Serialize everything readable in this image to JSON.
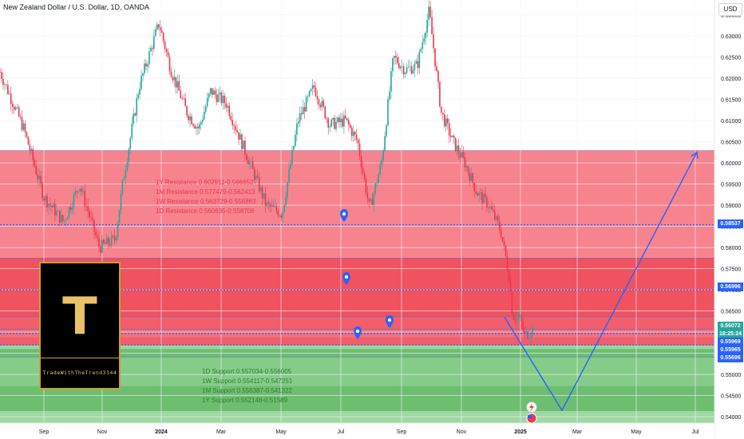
{
  "header": {
    "title": "New Zealand Dollar / U.S. Dollar, 1D, OANDA",
    "currency": "USD"
  },
  "logo": {
    "letter": "T",
    "text": "TradeWithTheTrend3344"
  },
  "resistance_labels": [
    "1Y Resistance 0.602911-0.566652",
    "1M Resistance 0.577479-0.562413",
    "1W Resistance 0.563729-0.556863",
    "1D Resistance 0.560635-0.558706"
  ],
  "support_labels": [
    "1D Support 0.557034-0.556005",
    "1W Support 0.554117-0.547251",
    "1M Support 0.556387-0.541322",
    "1Y Support 0.552148-0.51589"
  ],
  "price_tags": [
    {
      "price": "0.58537",
      "color": "#2962ff"
    },
    {
      "price": "0.56996",
      "color": "#2962ff"
    },
    {
      "price": "0.56072",
      "color": "#26a69a"
    },
    {
      "price": "18:25:24",
      "color": "#26a69a"
    },
    {
      "price": "0.55969",
      "color": "#2962ff"
    },
    {
      "price": "0.55965",
      "color": "#2962ff"
    },
    {
      "price": "0.55696",
      "color": "#2962ff"
    }
  ],
  "colors": {
    "up": "#26a69a",
    "down": "#e8384f",
    "resistance_zone": "#f23645",
    "support_zone": "#4caf50",
    "projection": "#2962ff"
  },
  "icons": [
    "location-marker-icon",
    "location-marker-icon",
    "location-marker-icon",
    "location-marker-icon",
    "lightning-icon",
    "us-flag-icon"
  ],
  "chart_data": {
    "type": "candlestick",
    "title": "New Zealand Dollar / U.S. Dollar, 1D, OANDA",
    "ylim": [
      0.5385,
      0.6385
    ],
    "x_ticks": [
      "Sep",
      "Nov",
      "2024",
      "Mar",
      "May",
      "Jul",
      "Sep",
      "Nov",
      "2025",
      "Mar",
      "May",
      "Jul"
    ],
    "y_ticks": [
      "0.63500",
      "0.63000",
      "0.62500",
      "0.62000",
      "0.61500",
      "0.61000",
      "0.60500",
      "0.60000",
      "0.59500",
      "0.59000",
      "0.58500",
      "0.58000",
      "0.57500",
      "0.57000",
      "0.56500",
      "0.56000",
      "0.55500",
      "0.55000",
      "0.54500",
      "0.54000"
    ],
    "price_path": [
      [
        0,
        0.6215
      ],
      [
        0.03,
        0.608
      ],
      [
        0.055,
        0.592
      ],
      [
        0.08,
        0.586
      ],
      [
        0.1,
        0.595
      ],
      [
        0.125,
        0.58
      ],
      [
        0.145,
        0.582
      ],
      [
        0.155,
        0.596
      ],
      [
        0.175,
        0.618
      ],
      [
        0.2,
        0.633
      ],
      [
        0.215,
        0.622
      ],
      [
        0.235,
        0.612
      ],
      [
        0.25,
        0.608
      ],
      [
        0.265,
        0.617
      ],
      [
        0.285,
        0.614
      ],
      [
        0.31,
        0.602
      ],
      [
        0.335,
        0.59
      ],
      [
        0.355,
        0.588
      ],
      [
        0.375,
        0.61
      ],
      [
        0.395,
        0.618
      ],
      [
        0.415,
        0.609
      ],
      [
        0.435,
        0.61
      ],
      [
        0.45,
        0.605
      ],
      [
        0.465,
        0.589
      ],
      [
        0.48,
        0.6
      ],
      [
        0.495,
        0.625
      ],
      [
        0.51,
        0.622
      ],
      [
        0.525,
        0.623
      ],
      [
        0.54,
        0.636
      ],
      [
        0.555,
        0.612
      ],
      [
        0.57,
        0.605
      ],
      [
        0.585,
        0.6
      ],
      [
        0.6,
        0.593
      ],
      [
        0.615,
        0.59
      ],
      [
        0.63,
        0.584
      ],
      [
        0.64,
        0.574
      ],
      [
        0.645,
        0.564
      ],
      [
        0.655,
        0.563
      ],
      [
        0.66,
        0.559
      ],
      [
        0.67,
        0.5607
      ]
    ],
    "zones": [
      {
        "name": "1Y Resistance",
        "from": 0.566652,
        "to": 0.602911
      },
      {
        "name": "1M Resistance",
        "from": 0.562413,
        "to": 0.577479
      },
      {
        "name": "1W Resistance",
        "from": 0.556863,
        "to": 0.563729
      },
      {
        "name": "1D Resistance",
        "from": 0.558706,
        "to": 0.560635
      },
      {
        "name": "1D Support",
        "from": 0.556005,
        "to": 0.557034
      },
      {
        "name": "1W Support",
        "from": 0.547251,
        "to": 0.554117
      },
      {
        "name": "1M Support",
        "from": 0.541322,
        "to": 0.556387
      },
      {
        "name": "1Y Support",
        "from": 0.51589,
        "to": 0.552148
      }
    ],
    "horizontal_levels": [
      0.58537,
      0.56996,
      0.55969,
      0.55965,
      0.55696
    ],
    "projection_path": [
      [
        "2024-12-15",
        0.5635
      ],
      [
        "2025-02-22",
        0.5415
      ],
      [
        "2025-07-01",
        0.6025
      ]
    ]
  }
}
